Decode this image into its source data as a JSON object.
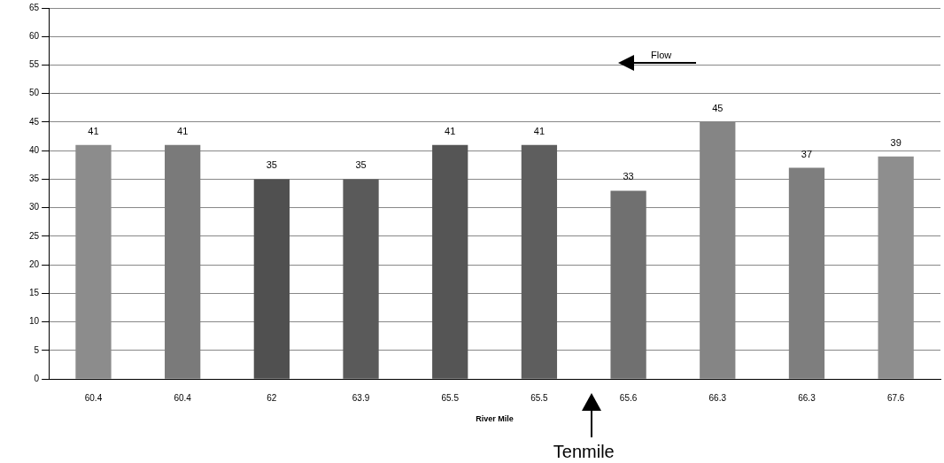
{
  "chart_data": {
    "type": "bar",
    "xlabel": "River Mile",
    "categories": [
      "60.4",
      "60.4",
      "62",
      "63.9",
      "65.5",
      "65.5",
      "65.6",
      "66.3",
      "66.3",
      "67.6"
    ],
    "values": [
      41,
      41,
      35,
      35,
      41,
      41,
      33,
      45,
      37,
      39
    ],
    "colors": [
      "#8c8c8c",
      "#7a7a7a",
      "#505050",
      "#5a5a5a",
      "#555555",
      "#5e5e5e",
      "#707070",
      "#858585",
      "#7e7e7e",
      "#8e8e8e"
    ],
    "ylim": [
      0,
      65
    ],
    "yticks": [
      0,
      5,
      10,
      15,
      20,
      25,
      30,
      35,
      40,
      45,
      50,
      55,
      60,
      65
    ],
    "grid": "y",
    "data_labels": true,
    "legend": false,
    "annotations": [
      "Flow",
      "Tenmile"
    ]
  }
}
